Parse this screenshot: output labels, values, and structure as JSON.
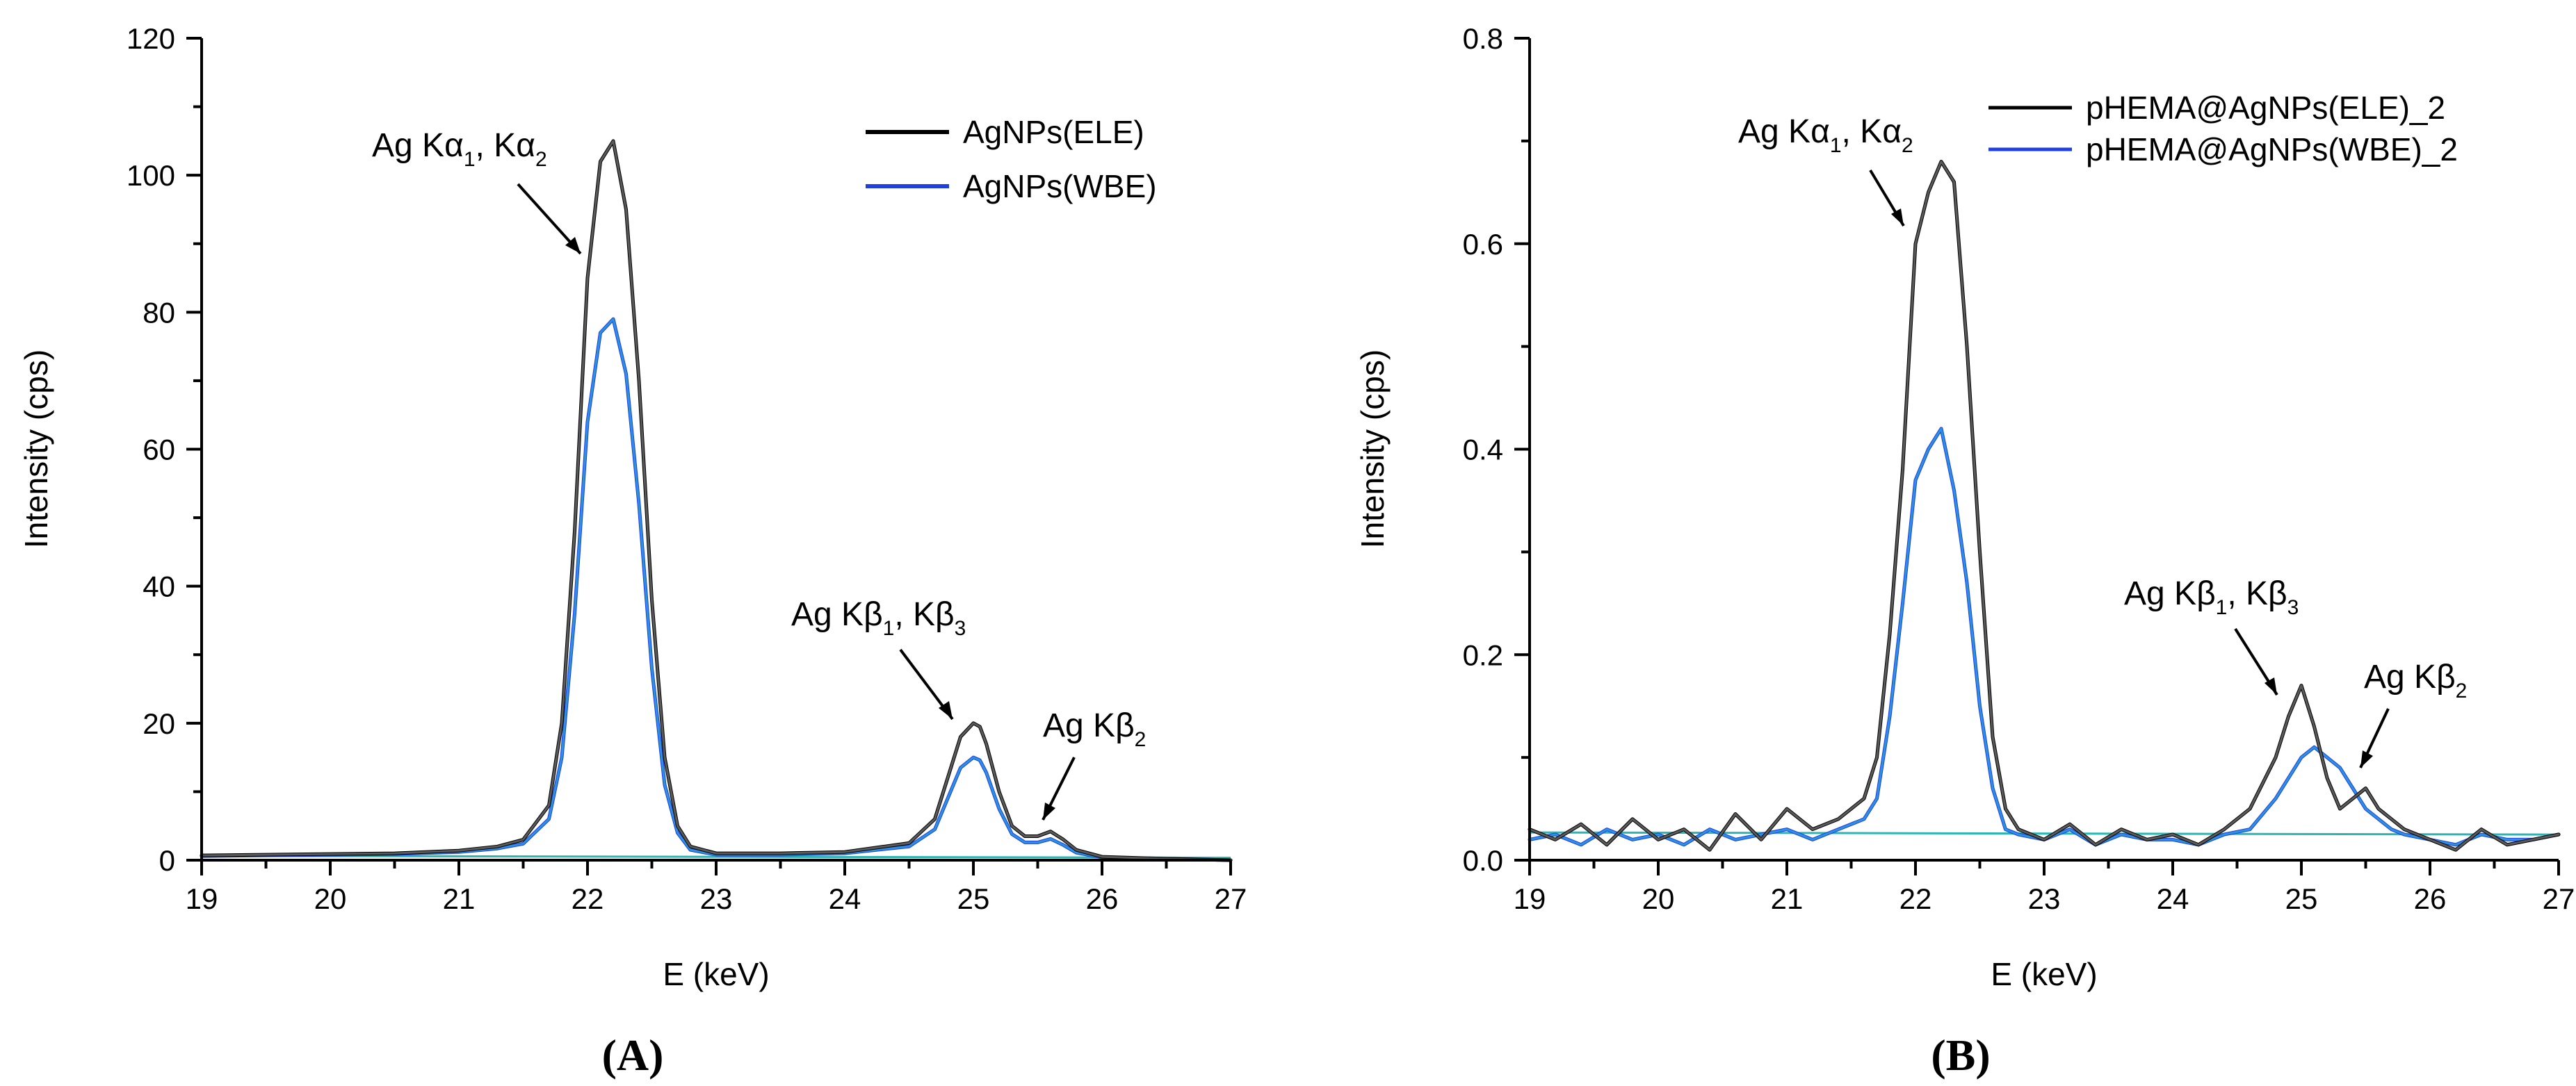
{
  "chart_data": [
    {
      "type": "line",
      "panel": "A",
      "panel_label": "(A)",
      "xlabel": "E (keV)",
      "ylabel": "Intensity (cps)",
      "xlim": [
        19,
        27
      ],
      "ylim": [
        0,
        120
      ],
      "xticks": [
        19,
        20,
        21,
        22,
        23,
        24,
        25,
        26,
        27
      ],
      "yticks": [
        0,
        20,
        40,
        60,
        80,
        100,
        120
      ],
      "legend_position": "top-right",
      "series": [
        {
          "name": "AgNPs(ELE)",
          "color": "#000000",
          "x": [
            19.0,
            19.5,
            20.0,
            20.5,
            21.0,
            21.3,
            21.5,
            21.7,
            21.8,
            21.9,
            22.0,
            22.1,
            22.2,
            22.3,
            22.4,
            22.5,
            22.6,
            22.7,
            22.8,
            23.0,
            23.5,
            24.0,
            24.5,
            24.7,
            24.8,
            24.9,
            25.0,
            25.05,
            25.1,
            25.2,
            25.3,
            25.4,
            25.5,
            25.6,
            25.7,
            25.8,
            26.0,
            26.5,
            27.0
          ],
          "y": [
            0.7,
            0.8,
            0.9,
            1.0,
            1.4,
            2.0,
            3.0,
            8.0,
            20.0,
            48.0,
            85.0,
            102.0,
            105.0,
            95.0,
            70.0,
            38.0,
            15.0,
            5.0,
            2.0,
            1.0,
            1.0,
            1.2,
            2.5,
            6.0,
            12.0,
            18.0,
            20.0,
            19.5,
            17.0,
            10.0,
            5.0,
            3.5,
            3.5,
            4.2,
            3.0,
            1.5,
            0.5,
            0.2,
            0.0
          ]
        },
        {
          "name": "AgNPs(WBE)",
          "color": "#1f3fe0",
          "x": [
            19.0,
            19.5,
            20.0,
            20.5,
            21.0,
            21.3,
            21.5,
            21.7,
            21.8,
            21.9,
            22.0,
            22.1,
            22.2,
            22.3,
            22.4,
            22.5,
            22.6,
            22.7,
            22.8,
            23.0,
            23.5,
            24.0,
            24.5,
            24.7,
            24.8,
            24.9,
            25.0,
            25.05,
            25.1,
            25.2,
            25.3,
            25.4,
            25.5,
            25.6,
            25.7,
            25.8,
            26.0,
            26.5,
            27.0
          ],
          "y": [
            0.6,
            0.7,
            0.8,
            0.9,
            1.2,
            1.7,
            2.4,
            6.0,
            15.0,
            36.0,
            64.0,
            77.0,
            79.0,
            71.0,
            52.0,
            28.0,
            11.0,
            4.0,
            1.5,
            0.8,
            0.8,
            1.0,
            2.0,
            4.5,
            9.0,
            13.5,
            15.0,
            14.6,
            12.8,
            7.5,
            3.8,
            2.6,
            2.6,
            3.1,
            2.2,
            1.1,
            0.4,
            0.2,
            0.0
          ]
        }
      ],
      "annotations": [
        {
          "text": "Ag Kα1, Kα2",
          "points_to": [
            22.1,
            86
          ]
        },
        {
          "text": "Ag Kβ1, Kβ3",
          "points_to": [
            25.0,
            20
          ]
        },
        {
          "text": "Ag Kβ2",
          "points_to": [
            25.55,
            4
          ]
        }
      ]
    },
    {
      "type": "line",
      "panel": "B",
      "panel_label": "(B)",
      "xlabel": "E (keV)",
      "ylabel": "Intensity (cps)",
      "xlim": [
        19,
        27
      ],
      "ylim": [
        0,
        0.8
      ],
      "xticks": [
        19,
        20,
        21,
        22,
        23,
        24,
        25,
        26,
        27
      ],
      "yticks": [
        0.0,
        0.2,
        0.4,
        0.6,
        0.8
      ],
      "legend_position": "top-right",
      "series": [
        {
          "name": "pHEMA@AgNPs(ELE)_2",
          "color": "#000000",
          "x": [
            19.0,
            19.2,
            19.4,
            19.6,
            19.8,
            20.0,
            20.2,
            20.4,
            20.6,
            20.8,
            21.0,
            21.2,
            21.4,
            21.6,
            21.7,
            21.8,
            21.9,
            22.0,
            22.1,
            22.2,
            22.3,
            22.4,
            22.5,
            22.6,
            22.7,
            22.8,
            23.0,
            23.2,
            23.4,
            23.6,
            23.8,
            24.0,
            24.2,
            24.4,
            24.6,
            24.8,
            24.9,
            25.0,
            25.1,
            25.2,
            25.3,
            25.4,
            25.5,
            25.6,
            25.7,
            25.8,
            26.0,
            26.2,
            26.4,
            26.6,
            26.8,
            27.0
          ],
          "y": [
            0.03,
            0.02,
            0.035,
            0.015,
            0.04,
            0.02,
            0.03,
            0.01,
            0.045,
            0.02,
            0.05,
            0.03,
            0.04,
            0.06,
            0.1,
            0.22,
            0.38,
            0.6,
            0.65,
            0.68,
            0.66,
            0.5,
            0.3,
            0.12,
            0.05,
            0.03,
            0.02,
            0.035,
            0.015,
            0.03,
            0.02,
            0.025,
            0.015,
            0.03,
            0.05,
            0.1,
            0.14,
            0.17,
            0.13,
            0.08,
            0.05,
            0.06,
            0.07,
            0.05,
            0.04,
            0.03,
            0.02,
            0.01,
            0.03,
            0.015,
            0.02,
            0.025
          ]
        },
        {
          "name": "pHEMA@AgNPs(WBE)_2",
          "color": "#1f3fe0",
          "x": [
            19.0,
            19.2,
            19.4,
            19.6,
            19.8,
            20.0,
            20.2,
            20.4,
            20.6,
            20.8,
            21.0,
            21.2,
            21.4,
            21.6,
            21.7,
            21.8,
            21.9,
            22.0,
            22.1,
            22.2,
            22.3,
            22.4,
            22.5,
            22.6,
            22.7,
            22.8,
            23.0,
            23.2,
            23.4,
            23.6,
            23.8,
            24.0,
            24.2,
            24.4,
            24.6,
            24.8,
            24.9,
            25.0,
            25.1,
            25.2,
            25.3,
            25.4,
            25.5,
            25.6,
            25.7,
            25.8,
            26.0,
            26.2,
            26.4,
            26.6,
            26.8,
            27.0
          ],
          "y": [
            0.02,
            0.025,
            0.015,
            0.03,
            0.02,
            0.025,
            0.015,
            0.03,
            0.02,
            0.025,
            0.03,
            0.02,
            0.03,
            0.04,
            0.06,
            0.14,
            0.25,
            0.37,
            0.4,
            0.42,
            0.36,
            0.27,
            0.15,
            0.07,
            0.03,
            0.025,
            0.02,
            0.03,
            0.015,
            0.025,
            0.02,
            0.02,
            0.015,
            0.025,
            0.03,
            0.06,
            0.08,
            0.1,
            0.11,
            0.1,
            0.09,
            0.07,
            0.05,
            0.04,
            0.03,
            0.025,
            0.02,
            0.015,
            0.025,
            0.02,
            0.02,
            0.025
          ]
        }
      ],
      "annotations": [
        {
          "text": "Ag Kα1, Kα2",
          "points_to": [
            22.0,
            0.6
          ]
        },
        {
          "text": "Ag Kβ1, Kβ3",
          "points_to": [
            24.95,
            0.15
          ]
        },
        {
          "text": "Ag Kβ2",
          "points_to": [
            25.5,
            0.08
          ]
        }
      ]
    }
  ]
}
